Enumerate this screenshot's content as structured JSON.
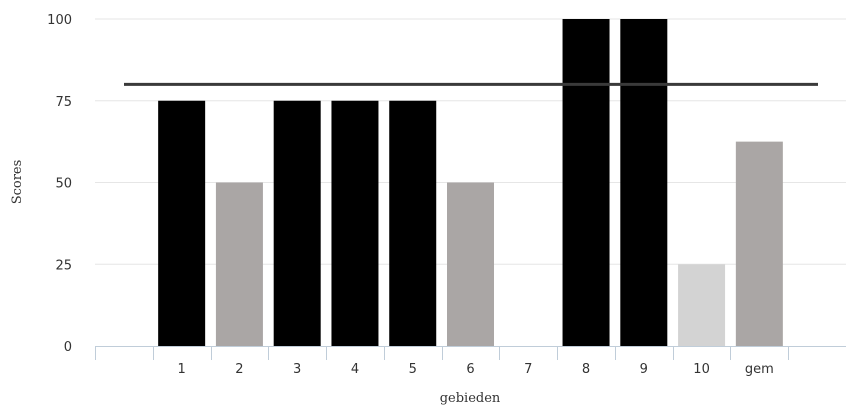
{
  "chart_data": {
    "type": "bar",
    "title": "",
    "xlabel": "gebieden",
    "ylabel": "Scores",
    "ylim": [
      0,
      100
    ],
    "yticks": [
      0,
      25,
      50,
      75,
      100
    ],
    "categories": [
      "",
      "1",
      "2",
      "3",
      "4",
      "5",
      "6",
      "7",
      "8",
      "9",
      "10",
      "gem",
      ""
    ],
    "values": [
      null,
      75,
      50,
      75,
      75,
      75,
      50,
      null,
      100,
      100,
      25,
      62.5,
      null
    ],
    "bar_colors": [
      "#000000",
      "#000000",
      "#aaa6a5",
      "#000000",
      "#000000",
      "#000000",
      "#aaa6a5",
      "#000000",
      "#000000",
      "#000000",
      "#d3d3d3",
      "#aaa6a5",
      "#000000"
    ],
    "reference_line": {
      "value": 80,
      "color": "#3a3a3a"
    },
    "grid": true,
    "gridline_color": "#e6e6e6",
    "axis_color": "#c0cdd9"
  }
}
